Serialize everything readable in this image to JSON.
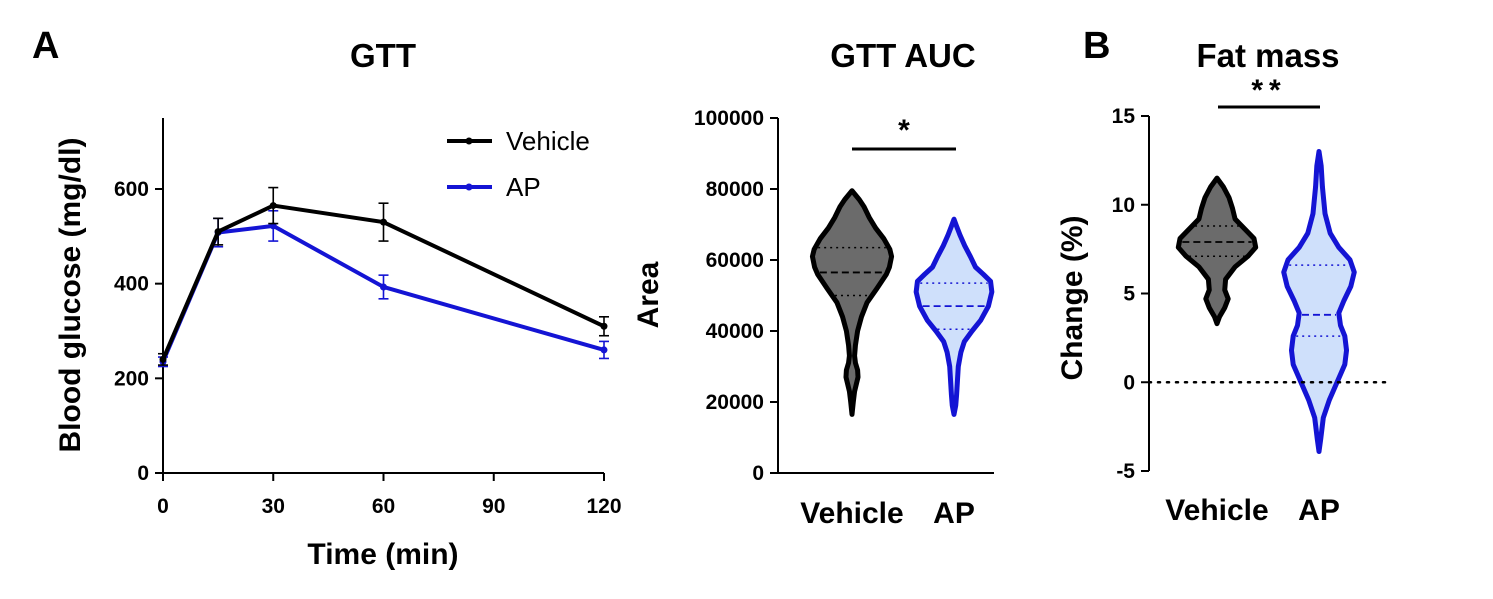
{
  "panels": {
    "a_label": "A",
    "b_label": "B"
  },
  "colors": {
    "vehicle_line": "#000000",
    "ap_line": "#1414d4",
    "vehicle_fill": "#6b6b6b",
    "ap_fill": "#cfe0fb",
    "axis": "#000000"
  },
  "chart_data": [
    {
      "type": "line",
      "title": "GTT",
      "xlabel": "Time (min)",
      "ylabel": "Blood glucose (mg/dl)",
      "xlim": [
        0,
        120
      ],
      "ylim": [
        0,
        750
      ],
      "xticks": [
        0,
        30,
        60,
        90,
        120
      ],
      "yticks": [
        0,
        200,
        400,
        600
      ],
      "legend": [
        "Vehicle",
        "AP"
      ],
      "legend_position": "top-right",
      "series": [
        {
          "name": "Vehicle",
          "x": [
            0,
            15,
            30,
            60,
            120
          ],
          "y": [
            240,
            510,
            565,
            530,
            310
          ],
          "err": [
            12,
            28,
            38,
            40,
            20
          ]
        },
        {
          "name": "AP",
          "x": [
            0,
            15,
            30,
            60,
            120
          ],
          "y": [
            235,
            508,
            522,
            393,
            260
          ],
          "err": [
            10,
            30,
            32,
            25,
            18
          ]
        }
      ]
    },
    {
      "type": "violin",
      "title": "GTT AUC",
      "ylabel": "Area",
      "categories": [
        "Vehicle",
        "AP"
      ],
      "ylim": [
        0,
        100000
      ],
      "yticks": [
        0,
        20000,
        40000,
        60000,
        80000,
        100000
      ],
      "significance": "*",
      "groups": [
        {
          "name": "Vehicle",
          "min": 16500,
          "max": 79500,
          "median": 56500,
          "q1": 50000,
          "q3": 63500,
          "profile": [
            [
              16500,
              0.0
            ],
            [
              20000,
              0.03
            ],
            [
              23000,
              0.06
            ],
            [
              25000,
              0.1
            ],
            [
              27000,
              0.14
            ],
            [
              29000,
              0.13
            ],
            [
              31000,
              0.08
            ],
            [
              33000,
              0.06
            ],
            [
              36000,
              0.08
            ],
            [
              40000,
              0.13
            ],
            [
              44000,
              0.22
            ],
            [
              48000,
              0.35
            ],
            [
              52000,
              0.58
            ],
            [
              56000,
              0.8
            ],
            [
              58000,
              0.87
            ],
            [
              61000,
              0.92
            ],
            [
              63000,
              0.88
            ],
            [
              66000,
              0.74
            ],
            [
              69000,
              0.55
            ],
            [
              72000,
              0.4
            ],
            [
              75000,
              0.28
            ],
            [
              77000,
              0.17
            ],
            [
              79500,
              0.0
            ]
          ]
        },
        {
          "name": "AP",
          "min": 16500,
          "max": 71500,
          "median": 47000,
          "q1": 40500,
          "q3": 53500,
          "profile": [
            [
              16500,
              0.0
            ],
            [
              19000,
              0.04
            ],
            [
              22000,
              0.06
            ],
            [
              26000,
              0.08
            ],
            [
              30000,
              0.1
            ],
            [
              34000,
              0.16
            ],
            [
              37000,
              0.24
            ],
            [
              40000,
              0.42
            ],
            [
              43000,
              0.62
            ],
            [
              47000,
              0.8
            ],
            [
              51000,
              0.88
            ],
            [
              54000,
              0.85
            ],
            [
              56000,
              0.68
            ],
            [
              58000,
              0.5
            ],
            [
              61000,
              0.38
            ],
            [
              64000,
              0.25
            ],
            [
              67000,
              0.14
            ],
            [
              69500,
              0.06
            ],
            [
              71500,
              0.0
            ]
          ]
        }
      ]
    },
    {
      "type": "violin",
      "title": "Fat mass",
      "ylabel": "Change (%)",
      "categories": [
        "Vehicle",
        "AP"
      ],
      "ylim": [
        -5,
        15
      ],
      "yticks": [
        -5,
        0,
        5,
        10,
        15
      ],
      "reference_line": 0,
      "significance": "**",
      "groups": [
        {
          "name": "Vehicle",
          "min": 3.3,
          "max": 11.5,
          "median": 7.9,
          "q1": 7.1,
          "q3": 8.8,
          "profile": [
            [
              3.3,
              0.0
            ],
            [
              3.7,
              0.06
            ],
            [
              4.2,
              0.18
            ],
            [
              4.7,
              0.26
            ],
            [
              5.2,
              0.18
            ],
            [
              5.8,
              0.2
            ],
            [
              6.5,
              0.42
            ],
            [
              7.1,
              0.72
            ],
            [
              7.6,
              0.9
            ],
            [
              8.1,
              0.86
            ],
            [
              8.6,
              0.66
            ],
            [
              9.2,
              0.42
            ],
            [
              9.8,
              0.36
            ],
            [
              10.4,
              0.28
            ],
            [
              11.0,
              0.15
            ],
            [
              11.5,
              0.0
            ]
          ]
        },
        {
          "name": "AP",
          "min": -3.9,
          "max": 13.0,
          "median": 3.8,
          "q1": 2.6,
          "q3": 6.6,
          "profile": [
            [
              -3.9,
              0.0
            ],
            [
              -3.2,
              0.04
            ],
            [
              -2.0,
              0.1
            ],
            [
              -1.0,
              0.24
            ],
            [
              0.0,
              0.42
            ],
            [
              1.0,
              0.6
            ],
            [
              1.8,
              0.64
            ],
            [
              2.6,
              0.6
            ],
            [
              3.2,
              0.5
            ],
            [
              3.9,
              0.46
            ],
            [
              4.6,
              0.58
            ],
            [
              5.4,
              0.74
            ],
            [
              6.2,
              0.82
            ],
            [
              6.9,
              0.72
            ],
            [
              7.6,
              0.46
            ],
            [
              8.4,
              0.26
            ],
            [
              9.5,
              0.14
            ],
            [
              11.0,
              0.08
            ],
            [
              12.2,
              0.05
            ],
            [
              13.0,
              0.0
            ]
          ]
        }
      ]
    }
  ]
}
